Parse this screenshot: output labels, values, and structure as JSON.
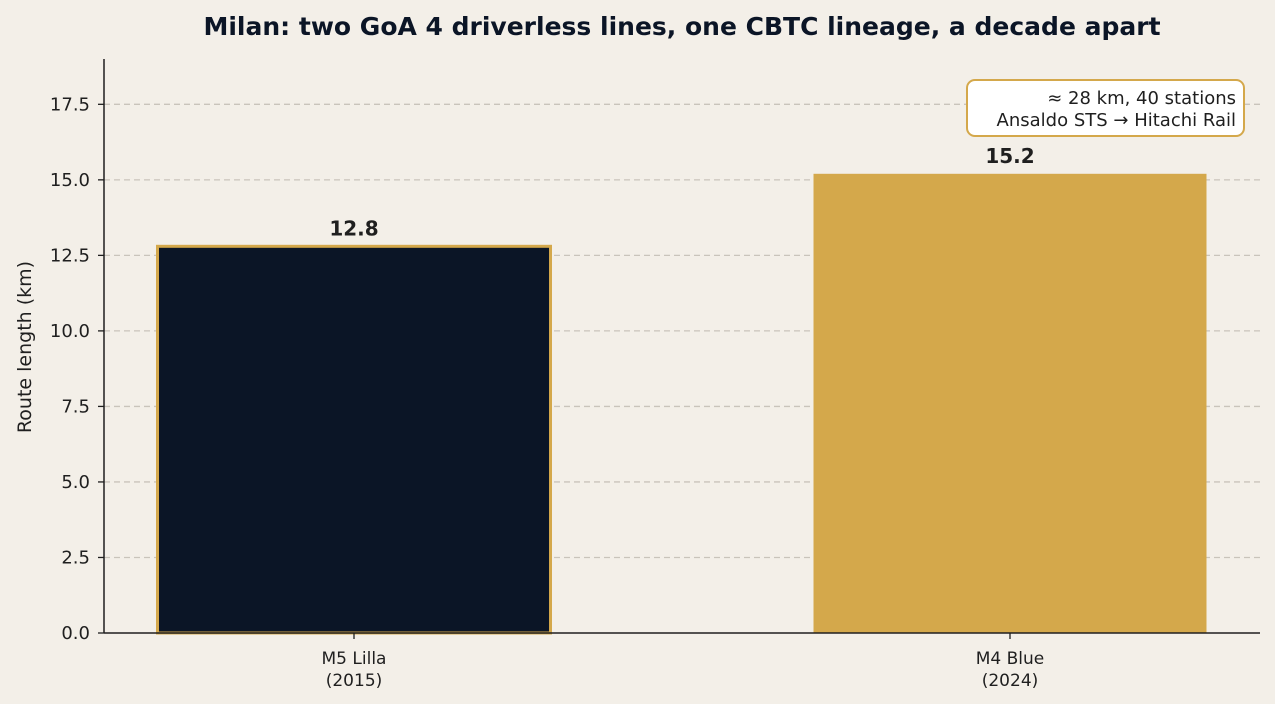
{
  "chart_data": {
    "type": "bar",
    "title": "Milan: two GoA 4 driverless lines, one CBTC lineage, a decade apart",
    "xlabel": "",
    "ylabel": "Route length (km)",
    "ylim": [
      0,
      19
    ],
    "yticks": [
      0,
      2.5,
      5,
      7.5,
      10,
      12.5,
      15,
      17.5
    ],
    "ytick_labels": [
      "0.0",
      "2.5",
      "5.0",
      "7.5",
      "10.0",
      "12.5",
      "15.0",
      "17.5"
    ],
    "grid": "horizontal-dashed",
    "categories": [
      [
        "M5 Lilla",
        "(2015)"
      ],
      [
        "M4 Blue",
        "(2024)"
      ]
    ],
    "values": [
      12.8,
      15.2
    ],
    "value_labels": [
      "12.8",
      "15.2"
    ],
    "colors": [
      "#0b1526",
      "#d4a84b"
    ],
    "edge_colors": [
      "#d4a84b",
      "#d4a84b"
    ],
    "annotation": {
      "lines": [
        "≈ 28 km, 40 stations",
        "Ansaldo STS → Hitachi Rail"
      ],
      "placement": "top-right",
      "border_color": "#d4a84b"
    }
  }
}
